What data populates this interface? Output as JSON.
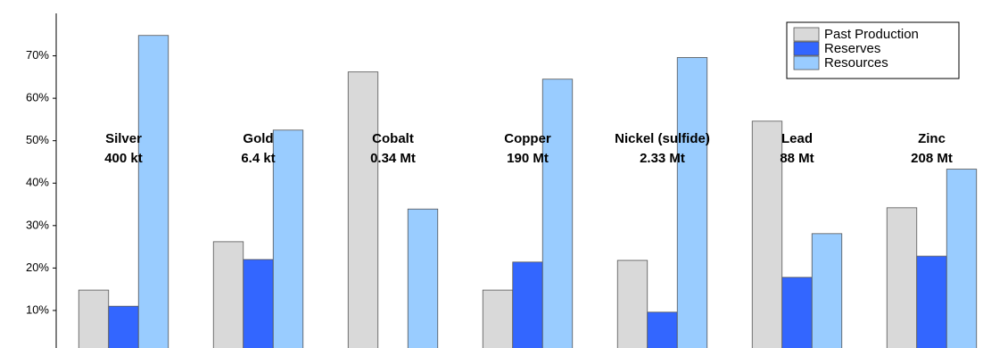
{
  "chart_data": {
    "type": "bar",
    "categories": [
      "Silver",
      "Gold",
      "Cobalt",
      "Copper",
      "Nickel (sulfide)",
      "Lead",
      "Zinc"
    ],
    "amounts": [
      "400 kt",
      "6.4 kt",
      "0.34 Mt",
      "190 Mt",
      "2.33 Mt",
      "88 Mt",
      "208 Mt"
    ],
    "series": [
      {
        "name": "Past Production",
        "color": "#d9d9d9",
        "values": [
          14.8,
          26.2,
          66.2,
          14.8,
          21.8,
          54.6,
          34.2
        ]
      },
      {
        "name": "Reserves",
        "color": "#3366ff",
        "values": [
          11.0,
          22.0,
          null,
          21.4,
          9.6,
          17.8,
          22.8
        ]
      },
      {
        "name": "Resources",
        "color": "#99ccff",
        "values": [
          74.8,
          52.5,
          33.9,
          64.5,
          69.6,
          28.1,
          43.3
        ]
      }
    ],
    "ylim": [
      0,
      80
    ],
    "yticks": [
      {
        "value": 10,
        "label": "10%"
      },
      {
        "value": 20,
        "label": "20%"
      },
      {
        "value": 30,
        "label": "30%"
      },
      {
        "value": 40,
        "label": "40%"
      },
      {
        "value": 50,
        "label": "50%"
      },
      {
        "value": 60,
        "label": "60%"
      },
      {
        "value": 70,
        "label": "70%"
      }
    ],
    "grid": false,
    "legend": "upper right"
  }
}
